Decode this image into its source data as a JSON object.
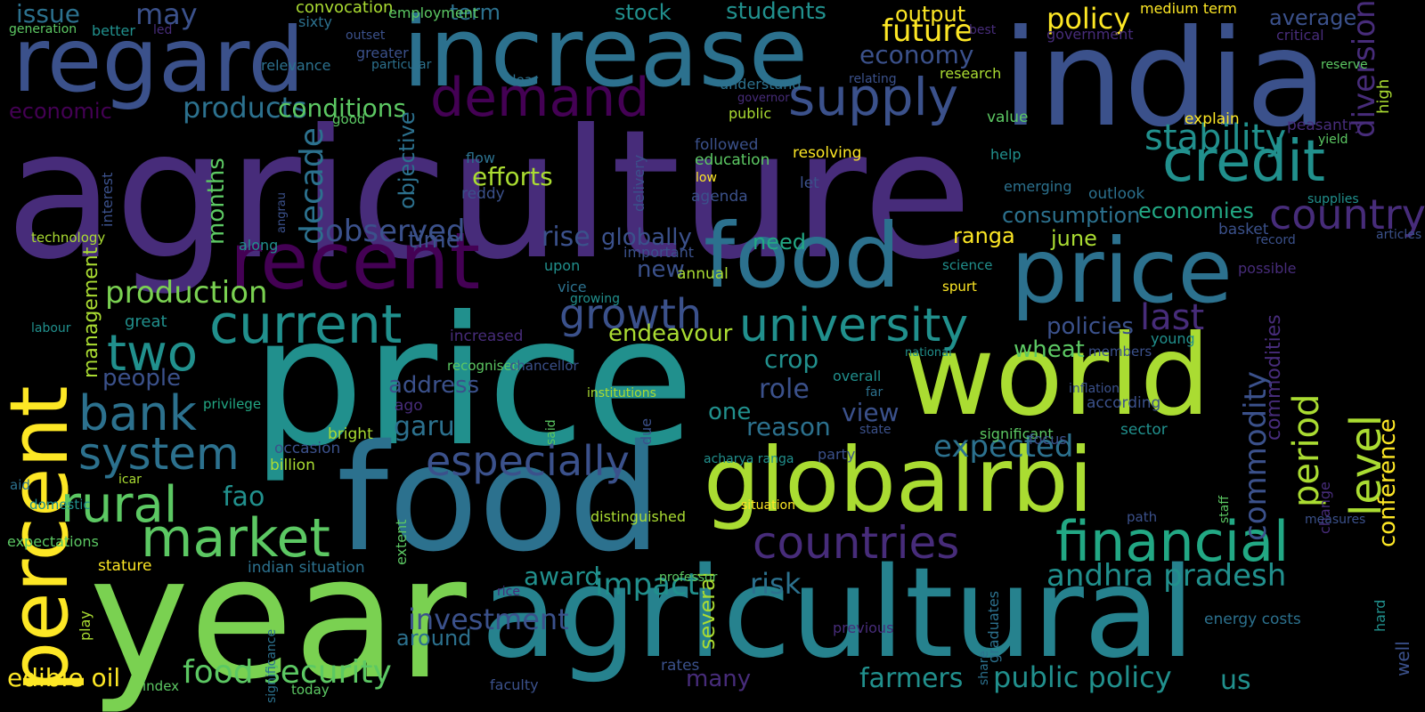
{
  "palette": {
    "background": "#000000",
    "viridis": [
      "#440154",
      "#472c7a",
      "#3b518b",
      "#2c718e",
      "#21908d",
      "#27ad81",
      "#5cc863",
      "#aadc32",
      "#fde725"
    ]
  },
  "words": [
    {
      "text": "agriculture",
      "color": "#472c7a"
    },
    {
      "text": "price",
      "color": "#21908d"
    },
    {
      "text": "food",
      "color": "#2c718e"
    },
    {
      "text": "india",
      "color": "#3b518b"
    },
    {
      "text": "increase",
      "color": "#2c718e"
    },
    {
      "text": "regard",
      "color": "#3b518b"
    },
    {
      "text": "year",
      "color": "#7ad151"
    },
    {
      "text": "agricultural",
      "color": "#26828e"
    },
    {
      "text": "world",
      "color": "#aadc32"
    },
    {
      "text": "globalrbi",
      "color": "#aadc32"
    },
    {
      "text": "food",
      "color": "#2c718e"
    },
    {
      "text": "price",
      "color": "#2c718e"
    },
    {
      "text": "recent",
      "color": "#440154"
    },
    {
      "text": "percent",
      "color": "#fde725"
    },
    {
      "text": "demand",
      "color": "#440154"
    },
    {
      "text": "financial",
      "color": "#22a884"
    },
    {
      "text": "current",
      "color": "#21908d"
    },
    {
      "text": "university",
      "color": "#21908d"
    },
    {
      "text": "credit",
      "color": "#21908d"
    },
    {
      "text": "supply",
      "color": "#3b518b"
    },
    {
      "text": "countries",
      "color": "#472c7a"
    },
    {
      "text": "market",
      "color": "#5cc863"
    },
    {
      "text": "bank",
      "color": "#2c718e"
    },
    {
      "text": "system",
      "color": "#2c718e"
    },
    {
      "text": "rural",
      "color": "#5cc863"
    },
    {
      "text": "two",
      "color": "#21908d"
    },
    {
      "text": "especially",
      "color": "#3b518b"
    },
    {
      "text": "andhra pradesh",
      "color": "#21908d"
    },
    {
      "text": "food security",
      "color": "#5cc863"
    },
    {
      "text": "farmers",
      "color": "#21908d"
    },
    {
      "text": "public policy",
      "color": "#21908d"
    },
    {
      "text": "growth",
      "color": "#3b518b"
    },
    {
      "text": "stability",
      "color": "#21908d"
    },
    {
      "text": "country",
      "color": "#472c7a"
    },
    {
      "text": "production",
      "color": "#7ad151"
    },
    {
      "text": "issue",
      "color": "#2c718e"
    },
    {
      "text": "may",
      "color": "#3b518b"
    },
    {
      "text": "future",
      "color": "#fde725"
    },
    {
      "text": "policy",
      "color": "#fde725"
    },
    {
      "text": "output",
      "color": "#fde725"
    },
    {
      "text": "economy",
      "color": "#3b518b"
    },
    {
      "text": "term",
      "color": "#2c718e"
    },
    {
      "text": "stock",
      "color": "#21908d"
    },
    {
      "text": "students",
      "color": "#21908d"
    },
    {
      "text": "products",
      "color": "#2c718e"
    },
    {
      "text": "conditions",
      "color": "#5cc863"
    },
    {
      "text": "economic",
      "color": "#440154"
    },
    {
      "text": "observed",
      "color": "#3b518b"
    },
    {
      "text": "time",
      "color": "#3b518b"
    },
    {
      "text": "rise",
      "color": "#3b518b"
    },
    {
      "text": "globally",
      "color": "#3b518b"
    },
    {
      "text": "need",
      "color": "#22a884"
    },
    {
      "text": "new",
      "color": "#3b518b"
    },
    {
      "text": "efforts",
      "color": "#aadc32"
    },
    {
      "text": "last",
      "color": "#472c7a"
    },
    {
      "text": "policies",
      "color": "#3b518b"
    },
    {
      "text": "endeavour",
      "color": "#aadc32"
    },
    {
      "text": "crop",
      "color": "#21908d"
    },
    {
      "text": "role",
      "color": "#3b518b"
    },
    {
      "text": "one",
      "color": "#21908d"
    },
    {
      "text": "view",
      "color": "#3b518b"
    },
    {
      "text": "reason",
      "color": "#2c718e"
    },
    {
      "text": "expected",
      "color": "#2c718e"
    },
    {
      "text": "wheat",
      "color": "#5cc863"
    },
    {
      "text": "address",
      "color": "#3b518b"
    },
    {
      "text": "garu",
      "color": "#2c718e"
    },
    {
      "text": "people",
      "color": "#3b518b"
    },
    {
      "text": "fao",
      "color": "#21908d"
    },
    {
      "text": "award",
      "color": "#21908d"
    },
    {
      "text": "impact",
      "color": "#21908d"
    },
    {
      "text": "risk",
      "color": "#2c718e"
    },
    {
      "text": "investment",
      "color": "#3b518b"
    },
    {
      "text": "around",
      "color": "#2c718e"
    },
    {
      "text": "many",
      "color": "#472c7a"
    },
    {
      "text": "us",
      "color": "#21908d"
    },
    {
      "text": "edible oil",
      "color": "#fde725"
    },
    {
      "text": "level",
      "color": "#aadc32"
    },
    {
      "text": "period",
      "color": "#aadc32"
    },
    {
      "text": "commodity",
      "color": "#3b518b"
    },
    {
      "text": "diversion",
      "color": "#472c7a"
    },
    {
      "text": "decade",
      "color": "#2c718e"
    },
    {
      "text": "months",
      "color": "#5cc863"
    },
    {
      "text": "management",
      "color": "#aadc32"
    },
    {
      "text": "several",
      "color": "#aadc32"
    },
    {
      "text": "conference",
      "color": "#fde725"
    },
    {
      "text": "commodities",
      "color": "#472c7a"
    },
    {
      "text": "objective",
      "color": "#2c718e"
    },
    {
      "text": "delivery",
      "color": "#3b518b"
    },
    {
      "text": "interest",
      "color": "#3b518b"
    },
    {
      "text": "angrau",
      "color": "#3b518b"
    },
    {
      "text": "high",
      "color": "#aadc32"
    },
    {
      "text": "change",
      "color": "#472c7a"
    },
    {
      "text": "staff",
      "color": "#5cc863"
    },
    {
      "text": "said",
      "color": "#5cc863"
    },
    {
      "text": "due",
      "color": "#3b518b"
    },
    {
      "text": "play",
      "color": "#aadc32"
    },
    {
      "text": "extent",
      "color": "#5cc863"
    },
    {
      "text": "significance",
      "color": "#2c718e"
    },
    {
      "text": "graduates",
      "color": "#2c718e"
    },
    {
      "text": "share",
      "color": "#2c718e"
    },
    {
      "text": "hard",
      "color": "#21908d"
    },
    {
      "text": "well",
      "color": "#3b518b"
    },
    {
      "text": "convocation",
      "color": "#aadc32"
    },
    {
      "text": "sixty",
      "color": "#2c718e"
    },
    {
      "text": "employment",
      "color": "#5cc863"
    },
    {
      "text": "generation",
      "color": "#5cc863"
    },
    {
      "text": "better",
      "color": "#21908d"
    },
    {
      "text": "led",
      "color": "#472c7a"
    },
    {
      "text": "outset",
      "color": "#3b518b"
    },
    {
      "text": "greater",
      "color": "#3b518b"
    },
    {
      "text": "particular",
      "color": "#2c718e"
    },
    {
      "text": "relevance",
      "color": "#2c718e"
    },
    {
      "text": "dear",
      "color": "#2c718e"
    },
    {
      "text": "best",
      "color": "#472c7a"
    },
    {
      "text": "government",
      "color": "#472c7a"
    },
    {
      "text": "medium term",
      "color": "#fde725"
    },
    {
      "text": "critical",
      "color": "#472c7a"
    },
    {
      "text": "reserve",
      "color": "#5cc863"
    },
    {
      "text": "average",
      "color": "#3b518b"
    },
    {
      "text": "relating",
      "color": "#3b518b"
    },
    {
      "text": "research",
      "color": "#aadc32"
    },
    {
      "text": "understand",
      "color": "#2c718e"
    },
    {
      "text": "governor",
      "color": "#472c7a"
    },
    {
      "text": "public",
      "color": "#aadc32"
    },
    {
      "text": "good",
      "color": "#5cc863"
    },
    {
      "text": "value",
      "color": "#5cc863"
    },
    {
      "text": "explain",
      "color": "#fde725"
    },
    {
      "text": "peasantry",
      "color": "#472c7a"
    },
    {
      "text": "yield",
      "color": "#5cc863"
    },
    {
      "text": "help",
      "color": "#21908d"
    },
    {
      "text": "emerging",
      "color": "#2c718e"
    },
    {
      "text": "outlook",
      "color": "#2c718e"
    },
    {
      "text": "supplies",
      "color": "#21908d"
    },
    {
      "text": "consumption",
      "color": "#2c718e"
    },
    {
      "text": "economies",
      "color": "#22a884"
    },
    {
      "text": "june",
      "color": "#aadc32"
    },
    {
      "text": "ranga",
      "color": "#fde725"
    },
    {
      "text": "record",
      "color": "#3b518b"
    },
    {
      "text": "basket",
      "color": "#3b518b"
    },
    {
      "text": "articles",
      "color": "#3b518b"
    },
    {
      "text": "followed",
      "color": "#3b518b"
    },
    {
      "text": "education",
      "color": "#5cc863"
    },
    {
      "text": "low",
      "color": "#fde725"
    },
    {
      "text": "resolving",
      "color": "#fde725"
    },
    {
      "text": "let",
      "color": "#3b518b"
    },
    {
      "text": "agenda",
      "color": "#3b518b"
    },
    {
      "text": "flow",
      "color": "#2c718e"
    },
    {
      "text": "reddy",
      "color": "#3b518b"
    },
    {
      "text": "technology",
      "color": "#aadc32"
    },
    {
      "text": "along",
      "color": "#21908d"
    },
    {
      "text": "upon",
      "color": "#21908d"
    },
    {
      "text": "important",
      "color": "#3b518b"
    },
    {
      "text": "vice",
      "color": "#2c718e"
    },
    {
      "text": "growing",
      "color": "#21908d"
    },
    {
      "text": "annual",
      "color": "#aadc32"
    },
    {
      "text": "science",
      "color": "#21908d"
    },
    {
      "text": "possible",
      "color": "#472c7a"
    },
    {
      "text": "spurt",
      "color": "#fde725"
    },
    {
      "text": "great",
      "color": "#21908d"
    },
    {
      "text": "labour",
      "color": "#21908d"
    },
    {
      "text": "increased",
      "color": "#472c7a"
    },
    {
      "text": "recognised",
      "color": "#5cc863"
    },
    {
      "text": "chancellor",
      "color": "#3b518b"
    },
    {
      "text": "national",
      "color": "#21908d"
    },
    {
      "text": "members",
      "color": "#3b518b"
    },
    {
      "text": "young",
      "color": "#21908d"
    },
    {
      "text": "overall",
      "color": "#21908d"
    },
    {
      "text": "far",
      "color": "#2c718e"
    },
    {
      "text": "inflation",
      "color": "#3b518b"
    },
    {
      "text": "according",
      "color": "#3b518b"
    },
    {
      "text": "institutions",
      "color": "#aadc32"
    },
    {
      "text": "privilege",
      "color": "#22a884"
    },
    {
      "text": "ago",
      "color": "#472c7a"
    },
    {
      "text": "state",
      "color": "#3b518b"
    },
    {
      "text": "significant",
      "color": "#5cc863"
    },
    {
      "text": "focus",
      "color": "#3b518b"
    },
    {
      "text": "sector",
      "color": "#21908d"
    },
    {
      "text": "bright",
      "color": "#aadc32"
    },
    {
      "text": "occasion",
      "color": "#3b518b"
    },
    {
      "text": "billion",
      "color": "#aadc32"
    },
    {
      "text": "aid",
      "color": "#2c718e"
    },
    {
      "text": "icar",
      "color": "#aadc32"
    },
    {
      "text": "domestic",
      "color": "#21908d"
    },
    {
      "text": "expectations",
      "color": "#5cc863"
    },
    {
      "text": "stature",
      "color": "#fde725"
    },
    {
      "text": "indian situation",
      "color": "#2c718e"
    },
    {
      "text": "acharya ranga",
      "color": "#21908d"
    },
    {
      "text": "party",
      "color": "#3b518b"
    },
    {
      "text": "situation",
      "color": "#fde725"
    },
    {
      "text": "distinguished",
      "color": "#aadc32"
    },
    {
      "text": "path",
      "color": "#3b518b"
    },
    {
      "text": "measures",
      "color": "#3b518b"
    },
    {
      "text": "professor",
      "color": "#5cc863"
    },
    {
      "text": "rice",
      "color": "#472c7a"
    },
    {
      "text": "index",
      "color": "#5cc863"
    },
    {
      "text": "today",
      "color": "#5cc863"
    },
    {
      "text": "faculty",
      "color": "#3b518b"
    },
    {
      "text": "rates",
      "color": "#3b518b"
    },
    {
      "text": "previous",
      "color": "#472c7a"
    },
    {
      "text": "energy costs",
      "color": "#2c718e"
    }
  ]
}
